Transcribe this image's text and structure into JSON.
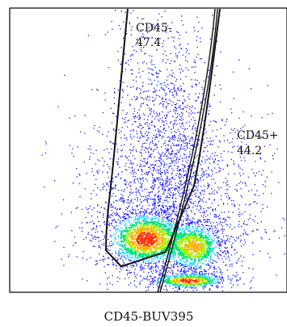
{
  "chart_data": {
    "type": "scatter",
    "subtype": "flow-cytometry-pseudocolor-density",
    "xlabel": "CD45-BUV395",
    "ylabel": "",
    "title": "",
    "grid": false,
    "gates": [
      {
        "name": "CD45-",
        "percent": "47.4"
      },
      {
        "name": "CD45+",
        "percent": "44.2"
      }
    ],
    "color_scale": [
      "#1515ff",
      "#00c8ff",
      "#00e27a",
      "#a8ef00",
      "#ffb000",
      "#ff2a00"
    ]
  }
}
